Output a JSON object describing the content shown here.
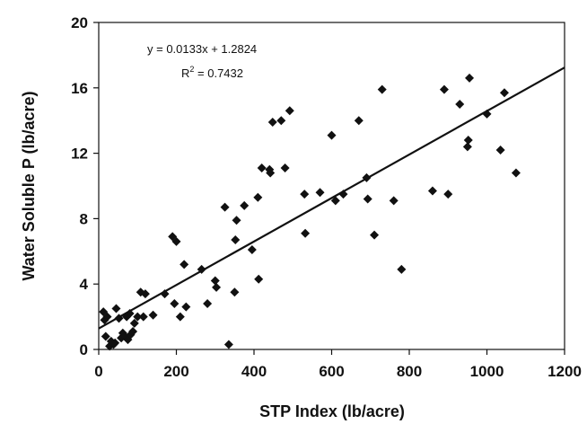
{
  "chart_data": {
    "type": "scatter",
    "xlabel": "STP Index (lb/acre)",
    "ylabel": "Water Soluble P (lb/acre)",
    "xlim": [
      0,
      1200
    ],
    "ylim": [
      0,
      20
    ],
    "xticks": [
      0,
      200,
      400,
      600,
      800,
      1000,
      1200
    ],
    "yticks": [
      0,
      4,
      8,
      12,
      16,
      20
    ],
    "xtick_labels": [
      "0",
      "200",
      "400",
      "600",
      "800",
      "1000",
      "1200"
    ],
    "ytick_labels": [
      "0",
      "4",
      "8",
      "12",
      "16",
      "20"
    ],
    "grid": false,
    "legend": "none",
    "marker": "diamond",
    "marker_color": "#111111",
    "trendline": {
      "slope": 0.0133,
      "intercept": 1.2824,
      "x_range": [
        0,
        1200
      ],
      "equation_text": "y = 0.0133x + 1.2824",
      "r2_prefix": "R",
      "r2_superscript": "2",
      "r2_suffix": " = 0.7432"
    },
    "points": [
      [
        12,
        2.3
      ],
      [
        15,
        1.8
      ],
      [
        18,
        0.8
      ],
      [
        22,
        2.0
      ],
      [
        28,
        0.2
      ],
      [
        32,
        0.5
      ],
      [
        38,
        0.3
      ],
      [
        42,
        0.4
      ],
      [
        45,
        2.5
      ],
      [
        52,
        1.9
      ],
      [
        58,
        0.7
      ],
      [
        62,
        1.0
      ],
      [
        68,
        0.8
      ],
      [
        72,
        2.0
      ],
      [
        75,
        0.6
      ],
      [
        80,
        2.2
      ],
      [
        82,
        0.9
      ],
      [
        88,
        1.1
      ],
      [
        92,
        1.6
      ],
      [
        100,
        2.0
      ],
      [
        108,
        3.5
      ],
      [
        115,
        2.0
      ],
      [
        120,
        3.4
      ],
      [
        140,
        2.1
      ],
      [
        170,
        3.4
      ],
      [
        190,
        6.9
      ],
      [
        195,
        2.8
      ],
      [
        200,
        6.6
      ],
      [
        210,
        2.0
      ],
      [
        220,
        5.2
      ],
      [
        225,
        2.6
      ],
      [
        265,
        4.9
      ],
      [
        280,
        2.8
      ],
      [
        300,
        4.2
      ],
      [
        303,
        3.8
      ],
      [
        325,
        8.7
      ],
      [
        335,
        0.3
      ],
      [
        350,
        3.5
      ],
      [
        352,
        6.7
      ],
      [
        355,
        7.9
      ],
      [
        375,
        8.8
      ],
      [
        395,
        6.1
      ],
      [
        410,
        9.3
      ],
      [
        412,
        4.3
      ],
      [
        420,
        11.1
      ],
      [
        440,
        11.0
      ],
      [
        442,
        10.8
      ],
      [
        448,
        13.9
      ],
      [
        470,
        14.0
      ],
      [
        480,
        11.1
      ],
      [
        492,
        14.6
      ],
      [
        530,
        9.5
      ],
      [
        532,
        7.1
      ],
      [
        570,
        9.6
      ],
      [
        600,
        13.1
      ],
      [
        610,
        9.1
      ],
      [
        630,
        9.5
      ],
      [
        670,
        14.0
      ],
      [
        690,
        10.5
      ],
      [
        693,
        9.2
      ],
      [
        710,
        7.0
      ],
      [
        730,
        15.9
      ],
      [
        760,
        9.1
      ],
      [
        780,
        4.9
      ],
      [
        860,
        9.7
      ],
      [
        890,
        15.9
      ],
      [
        900,
        9.5
      ],
      [
        930,
        15.0
      ],
      [
        950,
        12.4
      ],
      [
        952,
        12.8
      ],
      [
        955,
        16.6
      ],
      [
        1000,
        14.4
      ],
      [
        1035,
        12.2
      ],
      [
        1045,
        15.7
      ],
      [
        1075,
        10.8
      ]
    ]
  }
}
